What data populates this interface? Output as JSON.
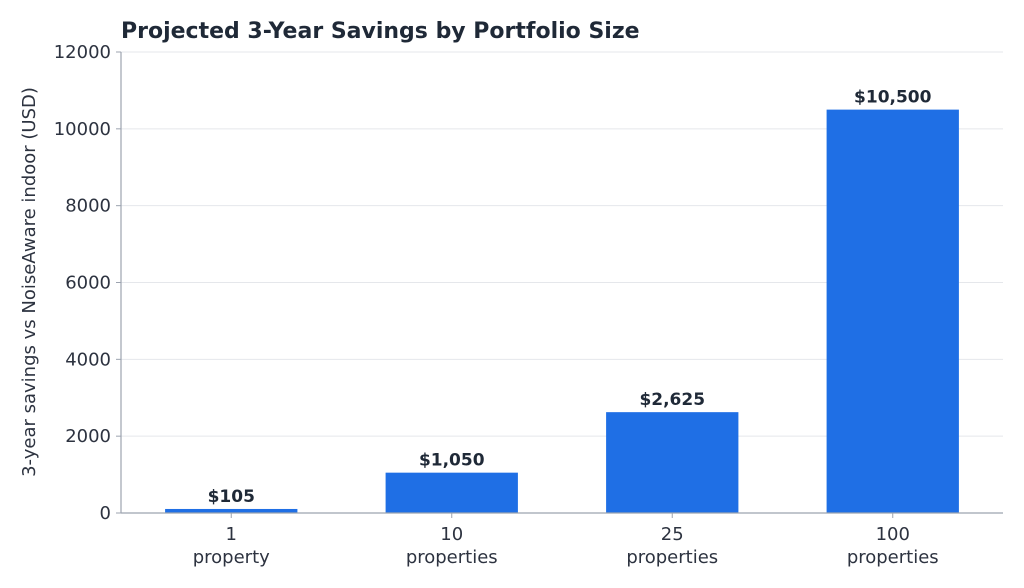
{
  "chart_data": {
    "type": "bar",
    "title": "Projected 3-Year Savings by Portfolio Size",
    "xlabel": "",
    "ylabel": "3-year savings vs NoiseAware indoor (USD)",
    "categories": [
      [
        "1",
        "property"
      ],
      [
        "10",
        "properties"
      ],
      [
        "25",
        "properties"
      ],
      [
        "100",
        "properties"
      ]
    ],
    "values": [
      105,
      1050,
      2625,
      10500
    ],
    "data_labels": [
      "$105",
      "$1,050",
      "$2,625",
      "$10,500"
    ],
    "ylim": [
      0,
      12000
    ],
    "yticks": [
      0,
      2000,
      4000,
      6000,
      8000,
      10000,
      12000
    ],
    "ytick_labels": [
      "0",
      "2000",
      "4000",
      "6000",
      "8000",
      "10000",
      "12000"
    ],
    "grid": "horizontal",
    "colors": {
      "bar": "#1f6fe5",
      "grid": "#e5e7eb",
      "axis": "#9ca3af",
      "text": "#1f2937"
    }
  }
}
